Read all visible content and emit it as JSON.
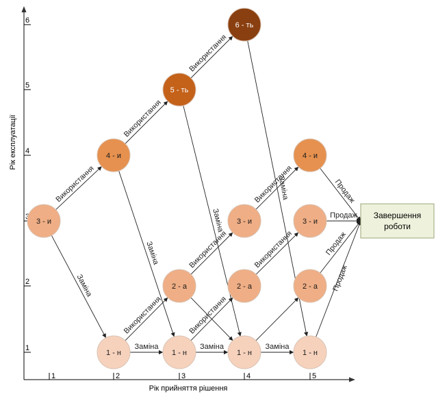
{
  "axes": {
    "x_title": "Рік прийняття рішення",
    "y_title": "Рік експлуатації",
    "x_ticks": [
      "1",
      "2",
      "3",
      "4",
      "5"
    ],
    "y_ticks": [
      "1",
      "2",
      "3",
      "4",
      "5",
      "6"
    ]
  },
  "nodes": [
    {
      "id": "n3i_1",
      "label": "3 - и",
      "decision_year": 1,
      "age": 3,
      "tone": "light"
    },
    {
      "id": "n4i_2",
      "label": "4 - и",
      "decision_year": 2,
      "age": 4,
      "tone": "medium"
    },
    {
      "id": "n1n_2",
      "label": "1 - н",
      "decision_year": 2,
      "age": 1,
      "tone": "pale"
    },
    {
      "id": "n5t_3",
      "label": "5 - ть",
      "decision_year": 3,
      "age": 5,
      "tone": "dark"
    },
    {
      "id": "n2a_3",
      "label": "2 - а",
      "decision_year": 3,
      "age": 2,
      "tone": "light"
    },
    {
      "id": "n1n_3",
      "label": "1 - н",
      "decision_year": 3,
      "age": 1,
      "tone": "pale"
    },
    {
      "id": "n6t_4",
      "label": "6 - ть",
      "decision_year": 4,
      "age": 6,
      "tone": "darkest"
    },
    {
      "id": "n3i_4",
      "label": "3 - и",
      "decision_year": 4,
      "age": 3,
      "tone": "light"
    },
    {
      "id": "n2a_4",
      "label": "2 - а",
      "decision_year": 4,
      "age": 2,
      "tone": "light"
    },
    {
      "id": "n1n_4",
      "label": "1 - н",
      "decision_year": 4,
      "age": 1,
      "tone": "pale"
    },
    {
      "id": "n4i_5",
      "label": "4 - и",
      "decision_year": 5,
      "age": 4,
      "tone": "medium"
    },
    {
      "id": "n3i_5",
      "label": "3 - и",
      "decision_year": 5,
      "age": 3,
      "tone": "light"
    },
    {
      "id": "n2a_5",
      "label": "2 - а",
      "decision_year": 5,
      "age": 2,
      "tone": "light"
    },
    {
      "id": "n1n_5",
      "label": "1 - н",
      "decision_year": 5,
      "age": 1,
      "tone": "pale"
    }
  ],
  "end_node": {
    "line1": "Завершення",
    "line2": "роботи"
  },
  "edges": [
    {
      "from": "n3i_1",
      "to": "n4i_2",
      "label": "Використання"
    },
    {
      "from": "n3i_1",
      "to": "n1n_2",
      "label": "Заміна"
    },
    {
      "from": "n4i_2",
      "to": "n5t_3",
      "label": "Використання"
    },
    {
      "from": "n4i_2",
      "to": "n1n_3",
      "label": "Заміна"
    },
    {
      "from": "n1n_2",
      "to": "n2a_3",
      "label": "Використання"
    },
    {
      "from": "n1n_2",
      "to": "n1n_3",
      "label": "Заміна"
    },
    {
      "from": "n5t_3",
      "to": "n6t_4",
      "label": "Використання"
    },
    {
      "from": "n5t_3",
      "to": "n1n_4",
      "label": "Заміна"
    },
    {
      "from": "n2a_3",
      "to": "n3i_4",
      "label": "Використання"
    },
    {
      "from": "n2a_3",
      "to": "n1n_4",
      "label": ""
    },
    {
      "from": "n1n_3",
      "to": "n2a_4",
      "label": "Використання"
    },
    {
      "from": "n1n_3",
      "to": "n1n_4",
      "label": "Заміна"
    },
    {
      "from": "n6t_4",
      "to": "n1n_5",
      "label": "Заміна"
    },
    {
      "from": "n3i_4",
      "to": "n4i_5",
      "label": "Використання"
    },
    {
      "from": "n2a_4",
      "to": "n3i_5",
      "label": "Використання"
    },
    {
      "from": "n1n_4",
      "to": "n2a_5",
      "label": ""
    },
    {
      "from": "n1n_4",
      "to": "n1n_5",
      "label": "Заміна"
    },
    {
      "from": "n4i_5",
      "to": "end",
      "label": "Продаж"
    },
    {
      "from": "n3i_5",
      "to": "end",
      "label": "Продаж"
    },
    {
      "from": "n2a_5",
      "to": "end",
      "label": "Продаж"
    },
    {
      "from": "n1n_5",
      "to": "end",
      "label": "Продаж"
    }
  ],
  "colors": {
    "pale": "#f6d2bd",
    "light": "#efae85",
    "medium": "#e6914f",
    "dark": "#c4621a",
    "darkest": "#8a3f10",
    "end_fill": "#eef2dc",
    "end_stroke": "#9aa57a"
  }
}
